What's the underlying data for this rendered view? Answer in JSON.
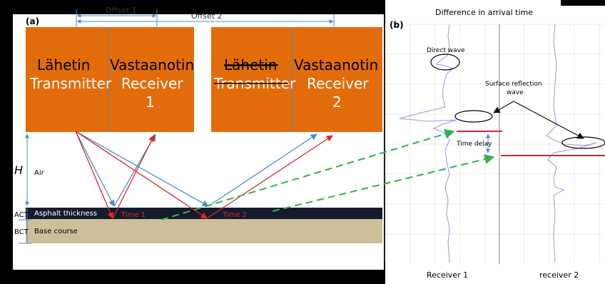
{
  "title": "Difference in arrival time",
  "panel_a": {
    "label": "(a)",
    "offset1": "Offset 1",
    "offset2": "Offset 2",
    "box1_left": {
      "line1": "Lähetin",
      "line2": "Transmitter"
    },
    "box1_right": {
      "line1": "Vastaanotin",
      "line2": "Receiver",
      "line3": "1"
    },
    "box2_left": {
      "line1": "Lähetin",
      "line2": "Transmitter"
    },
    "box2_right": {
      "line1": "Vastaanotin",
      "line2": "Receiver",
      "line3": "2"
    },
    "height_label": "H",
    "air_label": "Air",
    "act_label": "ACT",
    "bct_label": "BCT",
    "asphalt_label": "Asphalt thickness",
    "base_label": "Base course",
    "time1": "Time 1",
    "time2": "Time 2"
  },
  "panel_b": {
    "label": "(b)",
    "direct_wave": "Direct wave",
    "surface_reflection_line1": "Surface reflection",
    "surface_reflection_line2": "wave",
    "time_delay": "Time delay",
    "receiver1": "Receiver 1",
    "receiver2": "receiver 2"
  },
  "colors": {
    "box_fill": "#e36c0a",
    "ray_blue": "#4a8fc7",
    "ray_red": "#d9262b",
    "green_dash": "#2fb34a",
    "asphalt": "#141b2d",
    "base": "#cdbf9a",
    "trace": "#9c95e6",
    "offset_arrow": "#4a8fc7"
  }
}
